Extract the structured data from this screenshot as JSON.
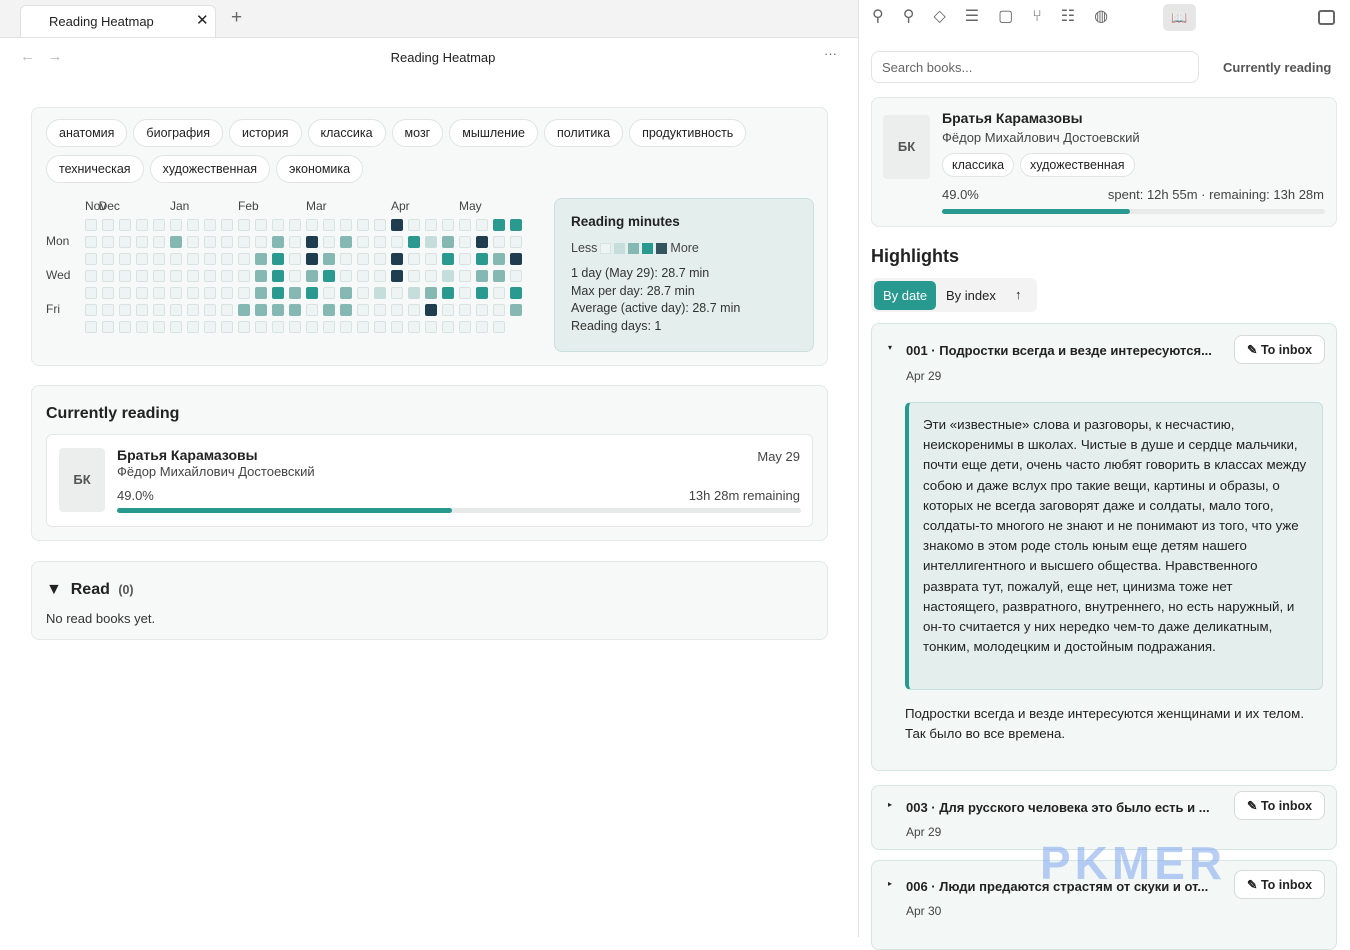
{
  "tab": {
    "title": "Reading Heatmap"
  },
  "header": {
    "title": "Reading Heatmap"
  },
  "tags": [
    "анатомия",
    "биография",
    "история",
    "классика",
    "мозг",
    "мышление",
    "политика",
    "продуктивность",
    "техническая",
    "художественная",
    "экономика"
  ],
  "heatmap": {
    "months": [
      "Nov",
      "Dec",
      "Jan",
      "Feb",
      "Mar",
      "Apr",
      "May"
    ],
    "weekdays": [
      "Mon",
      "Wed",
      "Fri"
    ],
    "levels": [
      [
        0,
        0,
        0,
        0,
        0,
        0,
        0,
        0,
        0,
        0,
        0,
        0,
        0,
        0,
        0,
        0,
        0,
        0,
        4,
        0,
        0,
        0,
        0,
        0,
        3,
        3
      ],
      [
        0,
        0,
        0,
        0,
        0,
        2,
        0,
        0,
        0,
        0,
        0,
        2,
        0,
        4,
        0,
        2,
        0,
        0,
        0,
        3,
        1,
        2,
        0,
        4,
        0,
        0
      ],
      [
        0,
        0,
        0,
        0,
        0,
        0,
        0,
        0,
        0,
        0,
        2,
        3,
        0,
        4,
        2,
        0,
        0,
        0,
        4,
        0,
        0,
        3,
        0,
        3,
        2,
        4
      ],
      [
        0,
        0,
        0,
        0,
        0,
        0,
        0,
        0,
        0,
        0,
        2,
        3,
        0,
        2,
        3,
        0,
        0,
        0,
        4,
        0,
        0,
        1,
        0,
        2,
        2,
        0
      ],
      [
        0,
        0,
        0,
        0,
        0,
        0,
        0,
        0,
        0,
        0,
        2,
        3,
        2,
        3,
        0,
        2,
        0,
        1,
        0,
        1,
        2,
        3,
        0,
        3,
        0,
        3
      ],
      [
        0,
        0,
        0,
        0,
        0,
        0,
        0,
        0,
        0,
        2,
        2,
        2,
        2,
        0,
        2,
        2,
        0,
        0,
        0,
        0,
        4,
        0,
        0,
        0,
        0,
        2
      ],
      [
        0,
        0,
        0,
        0,
        0,
        0,
        0,
        0,
        0,
        0,
        0,
        0,
        0,
        0,
        0,
        0,
        0,
        0,
        0,
        0,
        0,
        0,
        0,
        0,
        0,
        null
      ]
    ]
  },
  "stats": {
    "title": "Reading minutes",
    "less": "Less",
    "more": "More",
    "lines": [
      "1 day (May 29): 28.7 min",
      "Max per day: 28.7 min",
      "Average (active day): 28.7 min",
      "Reading days: 1"
    ]
  },
  "current": {
    "title": "Currently reading",
    "book": {
      "initials": "БК",
      "title": "Братья Карамазовы",
      "author": "Фёдор Михайлович Достоевский",
      "date": "May 29",
      "progress": {
        "value": 49,
        "label": "49.0%"
      },
      "remaining": "13h 28m remaining"
    }
  },
  "read": {
    "title": "Read",
    "count": "(0)",
    "empty": "No read books yet."
  },
  "sidebar": {
    "search": "Search books...",
    "tab": "Currently reading",
    "book": {
      "initials": "БК",
      "title": "Братья Карамазовы",
      "author": "Фёдор Михайлович Достоевский",
      "tags": [
        "классика",
        "художественная"
      ],
      "progress": {
        "value": 49,
        "label": "49.0%"
      },
      "time": "spent: 12h 55m · remaining: 13h 28m"
    },
    "highlights": {
      "title": "Highlights",
      "sort": [
        "By date",
        "By index"
      ],
      "button": "To inbox",
      "items": [
        {
          "title": "001 · Подростки всегда и везде интересуются...",
          "date": "Apr 29",
          "quote": "Эти «известные» слова и разговоры, к несчастию, неискоренимы в школах. Чистые в душе и сердце мальчики, почти еще дети, очень часто любят говорить в классах между собою и даже вслух про такие вещи, картины и образы, о которых не всегда заговорят даже и солдаты, мало того, солдаты-то многого не знают и не понимают из того, что уже знакомо в этом роде столь юным еще детям нашего интеллигентного и высшего общества. Нравственного разврата тут, пожалуй, еще нет, цинизма тоже нет настоящего, развратного, внутреннего, но есть наружный, и он-то считается у них нередко чем-то даже деликатным, тонким, молодецким и достойным подражания.",
          "note": "Подростки всегда и везде интересуются женщинами и их телом. Так было во все времена."
        },
        {
          "title": "003 · Для русского человека это было есть и ...",
          "date": "Apr 29"
        },
        {
          "title": "006 · Люди предаются страстям от скуки и от...",
          "date": "Apr 30"
        }
      ]
    }
  },
  "watermark": "PKMER"
}
